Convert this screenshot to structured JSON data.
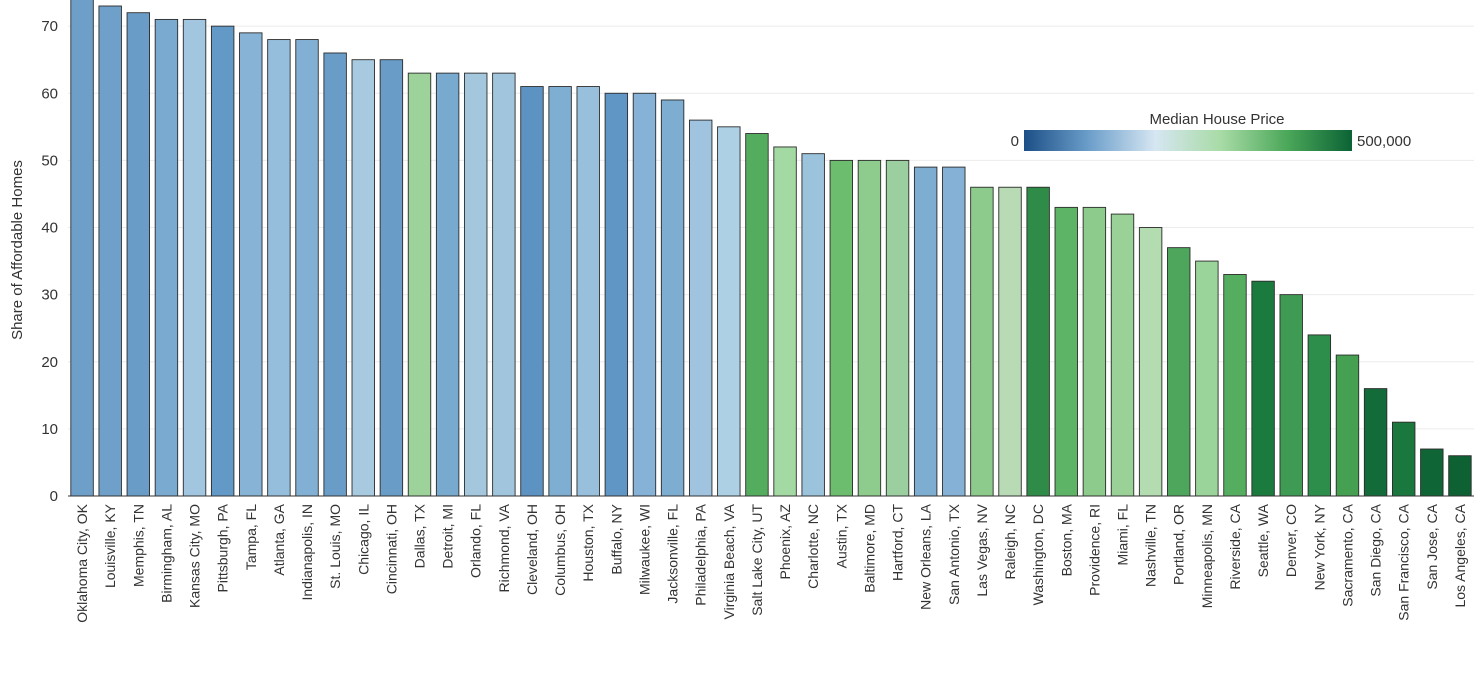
{
  "chart_data": {
    "type": "bar",
    "ylabel": "Share of Affordable Homes",
    "xlabel": "",
    "ylim": [
      0,
      73
    ],
    "yticks": [
      0,
      10,
      20,
      30,
      40,
      50,
      60,
      70
    ],
    "grid": true,
    "categories": [
      "Oklahoma City, OK",
      "Louisville, KY",
      "Memphis, TN",
      "Birmingham, AL",
      "Kansas City, MO",
      "Pittsburgh, PA",
      "Tampa, FL",
      "Atlanta, GA",
      "Indianapolis, IN",
      "St. Louis, MO",
      "Chicago, IL",
      "Cincinnati, OH",
      "Dallas, TX",
      "Detroit, MI",
      "Orlando, FL",
      "Richmond, VA",
      "Cleveland, OH",
      "Columbus, OH",
      "Houston, TX",
      "Buffalo, NY",
      "Milwaukee, WI",
      "Jacksonville, FL",
      "Philadelphia, PA",
      "Virginia Beach, VA",
      "Salt Lake City, UT",
      "Phoenix, AZ",
      "Charlotte, NC",
      "Austin, TX",
      "Baltimore, MD",
      "Hartford, CT",
      "New Orleans, LA",
      "San Antonio, TX",
      "Las Vegas, NV",
      "Raleigh, NC",
      "Washington, DC",
      "Boston, MA",
      "Providence, RI",
      "Miami, FL",
      "Nashville, TN",
      "Portland, OR",
      "Minneapolis, MN",
      "Riverside, CA",
      "Seattle, WA",
      "Denver, CO",
      "New York, NY",
      "Sacramento, CA",
      "San Diego, CA",
      "San Francisco, CA",
      "San Jose, CA",
      "Los Angeles, CA"
    ],
    "values": [
      74,
      73,
      72,
      71,
      71,
      70,
      69,
      68,
      68,
      66,
      65,
      65,
      63,
      63,
      63,
      63,
      61,
      61,
      61,
      60,
      60,
      59,
      56,
      55,
      54,
      52,
      51,
      50,
      50,
      50,
      49,
      49,
      46,
      46,
      46,
      43,
      43,
      42,
      40,
      37,
      35,
      33,
      32,
      30,
      24,
      21,
      16,
      11,
      7,
      6
    ],
    "colors": [
      "#6e9fc9",
      "#6fa0ca",
      "#6a9cc8",
      "#7aaad0",
      "#a2c6e0",
      "#6399c7",
      "#86b3d6",
      "#95bedc",
      "#82b0d4",
      "#6a9cc8",
      "#a8cae0",
      "#6a9cc8",
      "#9dd39a",
      "#78a9cf",
      "#a4c7de",
      "#a1c5dd",
      "#5c93c3",
      "#7faed3",
      "#98c0dc",
      "#6096c5",
      "#85b2d6",
      "#7eadd2",
      "#a0c4df",
      "#add0e4",
      "#54ad5f",
      "#a3d9a2",
      "#9cc3dc",
      "#6dbd6f",
      "#8dcc8c",
      "#9ccfa0",
      "#7eadd2",
      "#84b1d5",
      "#8ccb8b",
      "#b8dab5",
      "#2e8b48",
      "#5eb466",
      "#8ccb8b",
      "#99d197",
      "#b3dcb0",
      "#4ea55c",
      "#9ad49a",
      "#55ae60",
      "#1b7a3e",
      "#3f9b53",
      "#2d8e4c",
      "#45a052",
      "#136b39",
      "#1a783f",
      "#0f6535",
      "#0d6133"
    ],
    "legend": {
      "title": "Median House Price",
      "min_label": "0",
      "max_label": "500,000",
      "gradient": [
        "#1c4f86",
        "#6d9fcb",
        "#d6e6f2",
        "#a8dba6",
        "#4ca85a",
        "#0b6335"
      ],
      "placement": "top-right"
    }
  }
}
